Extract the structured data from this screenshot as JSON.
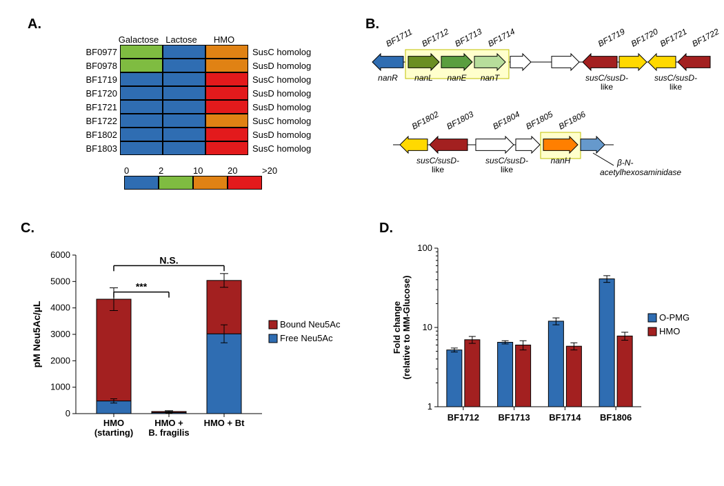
{
  "colors": {
    "blue": "#2f6db2",
    "green": "#7fbc41",
    "orange": "#e08214",
    "red": "#e31a1c",
    "darkred": "#a32020",
    "yellow": "#ffd900",
    "olive": "#6b8e23",
    "medgreen": "#5a9e3f",
    "ltgreen": "#b7dd9b",
    "dorange": "#ff7f00",
    "ltblue": "#6699cc",
    "white": "#ffffff"
  },
  "panelA": {
    "label": "A.",
    "col_headers": [
      "Galactose",
      "Lactose",
      "HMO"
    ],
    "row_ids": [
      "BF0977",
      "BF0978",
      "BF1719",
      "BF1720",
      "BF1721",
      "BF1722",
      "BF1802",
      "BF1803"
    ],
    "row_desc": [
      "SusC homolog",
      "SusD homolog",
      "SusC homolog",
      "SusD homolog",
      "SusD homolog",
      "SusC homolog",
      "SusD homolog",
      "SusC homolog"
    ],
    "cells": [
      [
        "green",
        "blue",
        "orange"
      ],
      [
        "green",
        "blue",
        "orange"
      ],
      [
        "blue",
        "blue",
        "red"
      ],
      [
        "blue",
        "blue",
        "red"
      ],
      [
        "blue",
        "blue",
        "red"
      ],
      [
        "blue",
        "blue",
        "orange"
      ],
      [
        "blue",
        "blue",
        "red"
      ],
      [
        "blue",
        "blue",
        "red"
      ]
    ],
    "scale_labels": [
      "0",
      "2",
      "10",
      "20",
      ">20"
    ],
    "scale_colors": [
      "blue",
      "green",
      "orange",
      "red"
    ]
  },
  "panelB": {
    "label": "B.",
    "top_genes": [
      {
        "id": "BF1711",
        "name": "nanR",
        "dir": "L",
        "fill": "#2f6db2",
        "x": 0,
        "w": 45
      },
      {
        "id": "BF1712",
        "name": "nanL",
        "dir": "R",
        "fill": "#6b8e23",
        "x": 52,
        "w": 45,
        "boxed": true
      },
      {
        "id": "BF1713",
        "name": "nanE",
        "dir": "R",
        "fill": "#5a9e3f",
        "x": 100,
        "w": 45,
        "boxed": true
      },
      {
        "id": "BF1714",
        "name": "nanT",
        "dir": "R",
        "fill": "#b7dd9b",
        "x": 148,
        "w": 45,
        "boxed": true
      },
      {
        "id": "",
        "name": "",
        "dir": "R",
        "fill": "#ffffff",
        "x": 200,
        "w": 30
      },
      {
        "id": "",
        "name": "",
        "dir": "R",
        "fill": "#ffffff",
        "x": 260,
        "w": 40
      },
      {
        "id": "BF1719",
        "name": "",
        "dir": "L",
        "fill": "#a32020",
        "x": 305,
        "w": 50,
        "group": "susC/susD-like"
      },
      {
        "id": "BF1720",
        "name": "",
        "dir": "R",
        "fill": "#ffd900",
        "x": 358,
        "w": 40
      },
      {
        "id": "BF1721",
        "name": "",
        "dir": "L",
        "fill": "#ffd900",
        "x": 400,
        "w": 40,
        "group": "susC/susD-like"
      },
      {
        "id": "BF1722",
        "name": "",
        "dir": "L",
        "fill": "#a32020",
        "x": 443,
        "w": 47
      }
    ],
    "bottom_genes": [
      {
        "id": "BF1802",
        "name": "",
        "dir": "L",
        "fill": "#ffd900",
        "x": 40,
        "w": 40,
        "group": "susC/susD-like"
      },
      {
        "id": "BF1803",
        "name": "",
        "dir": "L",
        "fill": "#a32020",
        "x": 83,
        "w": 55
      },
      {
        "id": "BF1804",
        "name": "",
        "dir": "R",
        "fill": "#ffffff",
        "x": 150,
        "w": 55,
        "group": "susC/susD-like"
      },
      {
        "id": "BF1805",
        "name": "",
        "dir": "R",
        "fill": "#ffffff",
        "x": 208,
        "w": 35
      },
      {
        "id": "BF1806",
        "name": "nanH",
        "dir": "R",
        "fill": "#ff7f00",
        "x": 248,
        "w": 50,
        "boxed": true
      },
      {
        "id": "",
        "name": "",
        "dir": "R",
        "fill": "#6699cc",
        "x": 302,
        "w": 35,
        "note": "β-N-acetylhexosaminidase"
      }
    ]
  },
  "panelC": {
    "label": "C.",
    "ylabel": "pM Neu5Ac/µL",
    "categories": [
      "HMO\n(starting)",
      "HMO +\nB. fragilis",
      "HMO + Bt"
    ],
    "series": [
      {
        "name": "Bound Neu5Ac",
        "color": "#a32020"
      },
      {
        "name": "Free Neu5Ac",
        "color": "#2f6db2"
      }
    ],
    "data": {
      "free": [
        480,
        40,
        3020
      ],
      "bound": [
        3850,
        40,
        2020
      ],
      "total_err": [
        {
          "lo": 430,
          "hi": 430
        },
        {
          "lo": 30,
          "hi": 30
        },
        {
          "lo": 260,
          "hi": 260
        }
      ],
      "free_err": [
        {
          "lo": 80,
          "hi": 80
        },
        {
          "lo": 20,
          "hi": 20
        },
        {
          "lo": 340,
          "hi": 340
        }
      ]
    },
    "ylim": [
      0,
      6000
    ],
    "yticks": [
      0,
      1000,
      2000,
      3000,
      4000,
      5000,
      6000
    ],
    "annotations": {
      "sig1": {
        "from": 0,
        "to": 1,
        "label": "***"
      },
      "sig2": {
        "from": 0,
        "to": 2,
        "label": "N.S."
      }
    }
  },
  "panelD": {
    "label": "D.",
    "ylabel": "Fold change\n(relative to MM-Glucose)",
    "categories": [
      "BF1712",
      "BF1713",
      "BF1714",
      "BF1806"
    ],
    "series": [
      {
        "name": "O-PMG",
        "color": "#2f6db2"
      },
      {
        "name": "HMO",
        "color": "#a32020"
      }
    ],
    "data": {
      "opmg": [
        5.2,
        6.5,
        12,
        41
      ],
      "hmo": [
        7.0,
        6.0,
        5.8,
        7.8
      ],
      "opmg_err": [
        0.3,
        0.3,
        1.2,
        4
      ],
      "hmo_err": [
        0.7,
        0.8,
        0.6,
        0.9
      ]
    },
    "ylim": [
      1,
      100
    ],
    "yticks": [
      1,
      10,
      100
    ],
    "scale": "log"
  }
}
